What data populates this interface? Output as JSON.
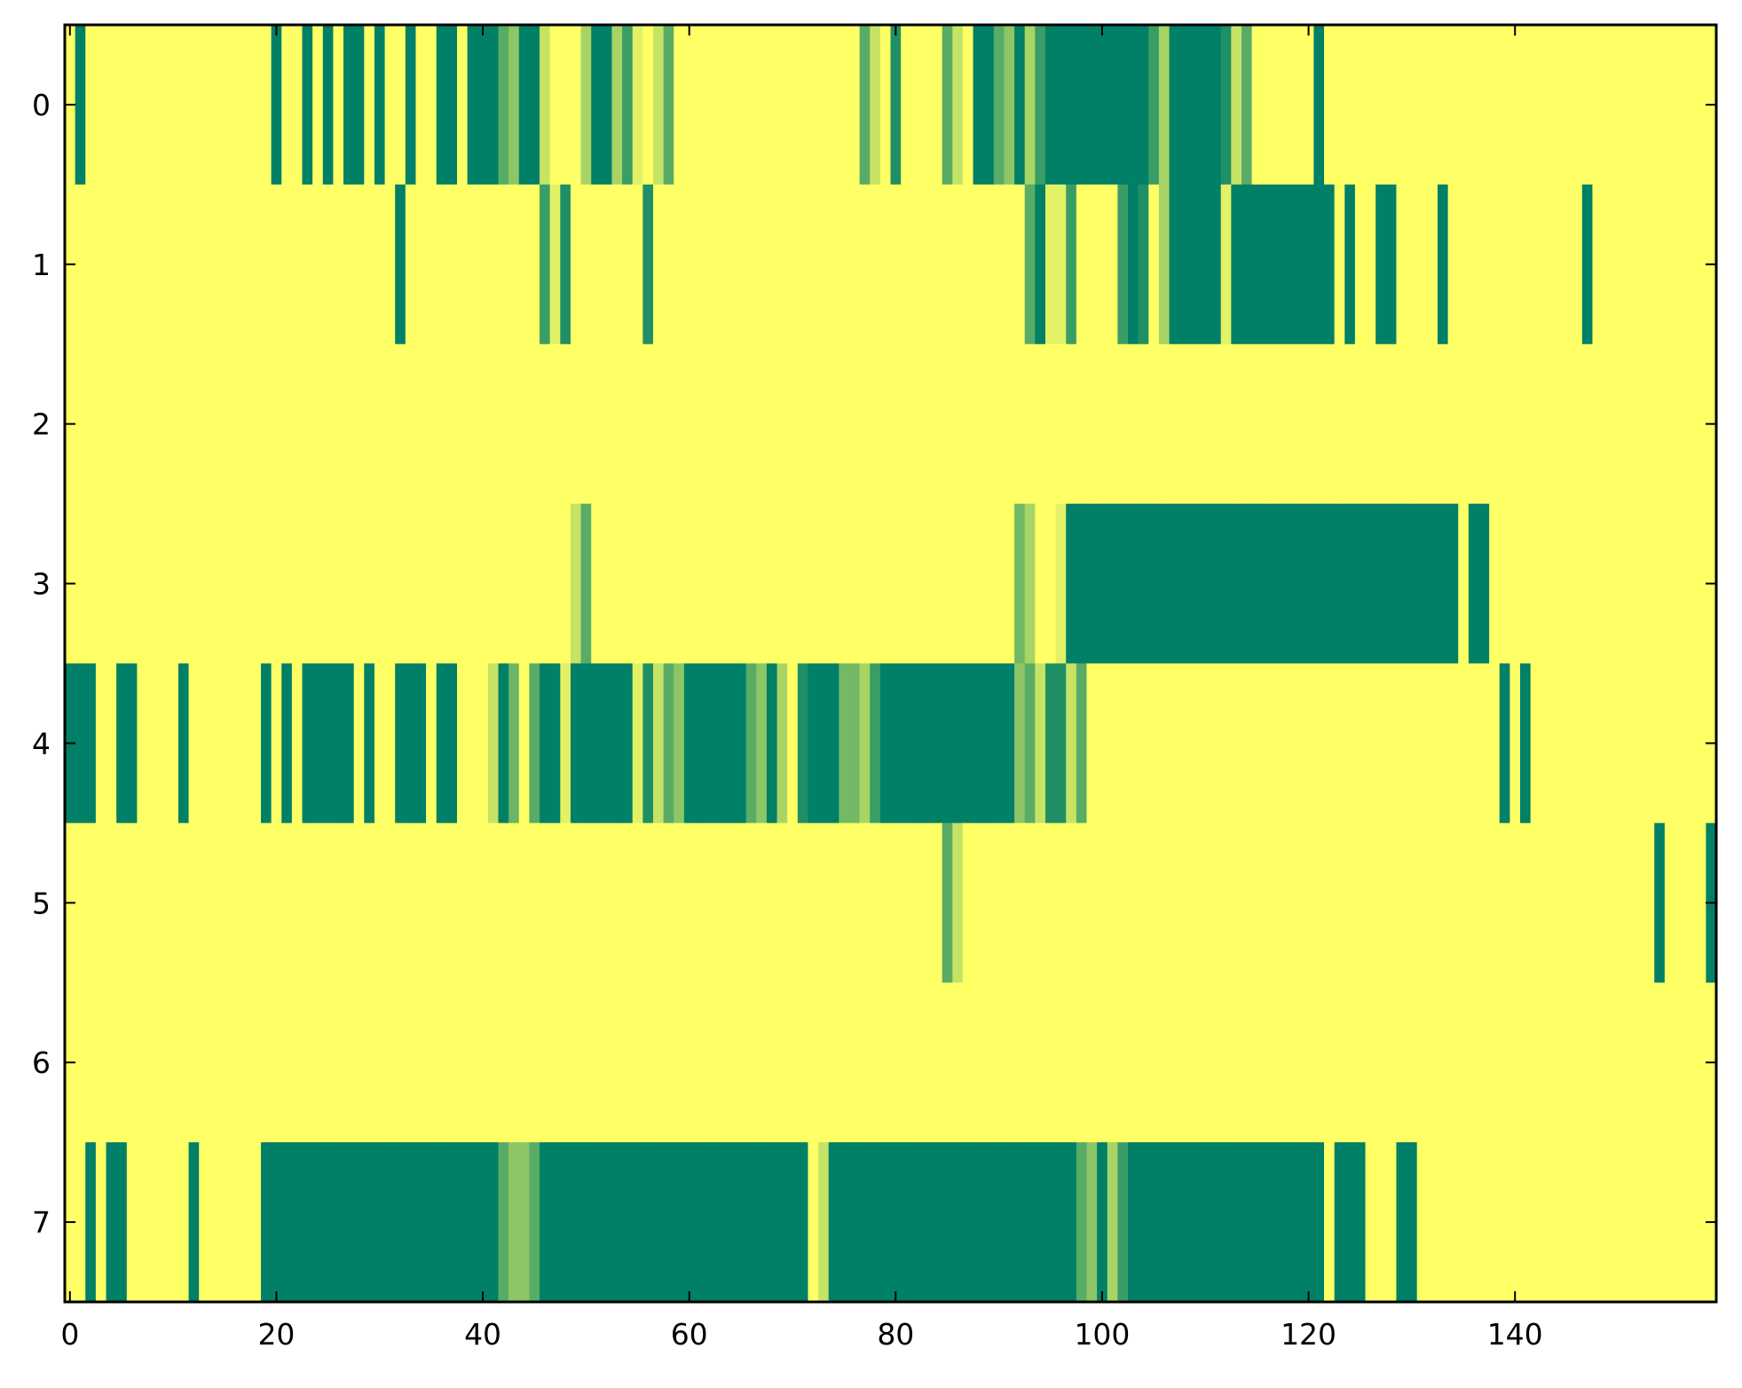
{
  "chart_data": {
    "type": "heatmap",
    "title": "",
    "xlabel": "",
    "ylabel": "",
    "colormap": "summer",
    "colormap_low": "#008066",
    "colormap_high": "#ffff66",
    "n_rows": 8,
    "n_cols": 160,
    "xlim": [
      -0.5,
      159.5
    ],
    "ylim": [
      7.5,
      -0.5
    ],
    "x_ticks": [
      0,
      20,
      40,
      60,
      80,
      100,
      120,
      140
    ],
    "x_tick_labels": [
      "0",
      "20",
      "40",
      "60",
      "80",
      "100",
      "120",
      "140"
    ],
    "y_ticks": [
      0,
      1,
      2,
      3,
      4,
      5,
      6,
      7
    ],
    "y_tick_labels": [
      "0",
      "1",
      "2",
      "3",
      "4",
      "5",
      "6",
      "7"
    ],
    "grid": false,
    "legend": "none",
    "default_value": 1,
    "rows_segments_note": "each segment = [first_col, last_col, value]; cells not listed equal default_value",
    "rows": [
      [
        [
          1,
          1,
          0
        ],
        [
          20,
          20,
          0
        ],
        [
          23,
          23,
          0
        ],
        [
          25,
          25,
          0
        ],
        [
          27,
          28,
          0
        ],
        [
          30,
          30,
          0
        ],
        [
          33,
          33,
          0
        ],
        [
          36,
          37,
          0
        ],
        [
          39,
          41,
          0
        ],
        [
          42,
          42,
          0.35
        ],
        [
          43,
          43,
          0.55
        ],
        [
          44,
          45,
          0
        ],
        [
          46,
          46,
          0.78
        ],
        [
          50,
          50,
          0.66
        ],
        [
          51,
          52,
          0
        ],
        [
          53,
          53,
          0.66
        ],
        [
          54,
          54,
          0.23
        ],
        [
          55,
          55,
          0.89
        ],
        [
          57,
          57,
          0.78
        ],
        [
          58,
          58,
          0.35
        ],
        [
          77,
          77,
          0.35
        ],
        [
          78,
          78,
          0.78
        ],
        [
          80,
          80,
          0.12
        ],
        [
          85,
          85,
          0.35
        ],
        [
          86,
          86,
          0.78
        ],
        [
          88,
          89,
          0
        ],
        [
          90,
          90,
          0.35
        ],
        [
          91,
          91,
          0.55
        ],
        [
          92,
          92,
          0
        ],
        [
          93,
          93,
          0.66
        ],
        [
          94,
          94,
          0.23
        ],
        [
          95,
          104,
          0
        ],
        [
          105,
          105,
          0.23
        ],
        [
          106,
          106,
          0.66
        ],
        [
          107,
          111,
          0
        ],
        [
          112,
          112,
          0.12
        ],
        [
          113,
          113,
          0.78
        ],
        [
          114,
          114,
          0.35
        ],
        [
          121,
          121,
          0
        ]
      ],
      [
        [
          32,
          32,
          0
        ],
        [
          46,
          46,
          0.23
        ],
        [
          47,
          47,
          0.89
        ],
        [
          48,
          48,
          0.12
        ],
        [
          56,
          56,
          0.12
        ],
        [
          93,
          93,
          0.35
        ],
        [
          94,
          94,
          0
        ],
        [
          95,
          96,
          0.89
        ],
        [
          97,
          97,
          0.23
        ],
        [
          102,
          102,
          0.23
        ],
        [
          103,
          103,
          0
        ],
        [
          104,
          104,
          0.12
        ],
        [
          106,
          106,
          0.66
        ],
        [
          107,
          111,
          0
        ],
        [
          112,
          112,
          0.89
        ],
        [
          113,
          122,
          0
        ],
        [
          124,
          124,
          0
        ],
        [
          127,
          128,
          0
        ],
        [
          133,
          133,
          0
        ],
        [
          147,
          147,
          0
        ]
      ],
      [],
      [
        [
          49,
          49,
          0.78
        ],
        [
          50,
          50,
          0.35
        ],
        [
          92,
          92,
          0.44
        ],
        [
          93,
          93,
          0.66
        ],
        [
          96,
          96,
          0.89
        ],
        [
          97,
          134,
          0
        ],
        [
          136,
          137,
          0
        ]
      ],
      [
        [
          0,
          2,
          0
        ],
        [
          5,
          6,
          0
        ],
        [
          11,
          11,
          0
        ],
        [
          19,
          19,
          0
        ],
        [
          21,
          21,
          0
        ],
        [
          23,
          27,
          0
        ],
        [
          29,
          29,
          0
        ],
        [
          32,
          34,
          0
        ],
        [
          36,
          37,
          0
        ],
        [
          41,
          41,
          0.78
        ],
        [
          42,
          42,
          0
        ],
        [
          43,
          43,
          0.42
        ],
        [
          45,
          45,
          0.35
        ],
        [
          46,
          47,
          0
        ],
        [
          48,
          48,
          0.89
        ],
        [
          49,
          54,
          0
        ],
        [
          55,
          55,
          0.89
        ],
        [
          56,
          56,
          0.12
        ],
        [
          57,
          57,
          0.78
        ],
        [
          58,
          58,
          0.35
        ],
        [
          59,
          59,
          0.55
        ],
        [
          60,
          65,
          0
        ],
        [
          66,
          66,
          0.35
        ],
        [
          67,
          67,
          0.55
        ],
        [
          68,
          68,
          0
        ],
        [
          69,
          69,
          0.66
        ],
        [
          71,
          71,
          0.12
        ],
        [
          72,
          74,
          0
        ],
        [
          75,
          76,
          0.45
        ],
        [
          77,
          77,
          0.66
        ],
        [
          78,
          78,
          0.23
        ],
        [
          79,
          91,
          0
        ],
        [
          92,
          92,
          0.55
        ],
        [
          93,
          93,
          0.35
        ],
        [
          94,
          94,
          0.78
        ],
        [
          95,
          96,
          0.12
        ],
        [
          97,
          97,
          0.78
        ],
        [
          98,
          98,
          0.35
        ],
        [
          139,
          139,
          0
        ],
        [
          141,
          141,
          0
        ]
      ],
      [
        [
          85,
          85,
          0.35
        ],
        [
          86,
          86,
          0.78
        ],
        [
          154,
          154,
          0
        ],
        [
          159,
          159,
          0
        ]
      ],
      [],
      [
        [
          2,
          2,
          0
        ],
        [
          4,
          5,
          0
        ],
        [
          12,
          12,
          0
        ],
        [
          19,
          41,
          0
        ],
        [
          42,
          42,
          0.35
        ],
        [
          43,
          44,
          0.55
        ],
        [
          45,
          45,
          0.35
        ],
        [
          46,
          71,
          0
        ],
        [
          73,
          73,
          0.78
        ],
        [
          74,
          97,
          0
        ],
        [
          98,
          98,
          0.35
        ],
        [
          99,
          99,
          0.55
        ],
        [
          100,
          100,
          0
        ],
        [
          101,
          101,
          0.66
        ],
        [
          102,
          102,
          0.23
        ],
        [
          103,
          121,
          0
        ],
        [
          123,
          125,
          0
        ],
        [
          129,
          130,
          0
        ]
      ]
    ]
  }
}
